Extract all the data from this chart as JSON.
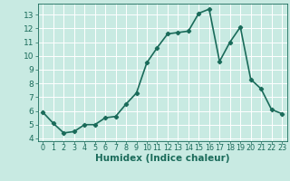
{
  "x": [
    0,
    1,
    2,
    3,
    4,
    5,
    6,
    7,
    8,
    9,
    10,
    11,
    12,
    13,
    14,
    15,
    16,
    17,
    18,
    19,
    20,
    21,
    22,
    23
  ],
  "y": [
    5.9,
    5.1,
    4.4,
    4.5,
    5.0,
    5.0,
    5.5,
    5.6,
    6.5,
    7.3,
    9.5,
    10.6,
    11.6,
    11.7,
    11.8,
    13.1,
    13.4,
    9.6,
    11.0,
    12.1,
    8.3,
    7.6,
    6.1,
    5.8
  ],
  "xlabel": "Humidex (Indice chaleur)",
  "line_color": "#1a6b5a",
  "marker": "D",
  "marker_size": 2.2,
  "bg_color": "#c8eae2",
  "grid_color": "#ffffff",
  "xlim": [
    -0.5,
    23.5
  ],
  "ylim": [
    3.8,
    13.8
  ],
  "yticks": [
    4,
    5,
    6,
    7,
    8,
    9,
    10,
    11,
    12,
    13
  ],
  "xticks": [
    0,
    1,
    2,
    3,
    4,
    5,
    6,
    7,
    8,
    9,
    10,
    11,
    12,
    13,
    14,
    15,
    16,
    17,
    18,
    19,
    20,
    21,
    22,
    23
  ],
  "linewidth": 1.2,
  "font_color": "#1a6b5a",
  "xlabel_fontsize": 7.5,
  "tick_fontsize": 6.5,
  "xtick_fontsize": 5.8
}
